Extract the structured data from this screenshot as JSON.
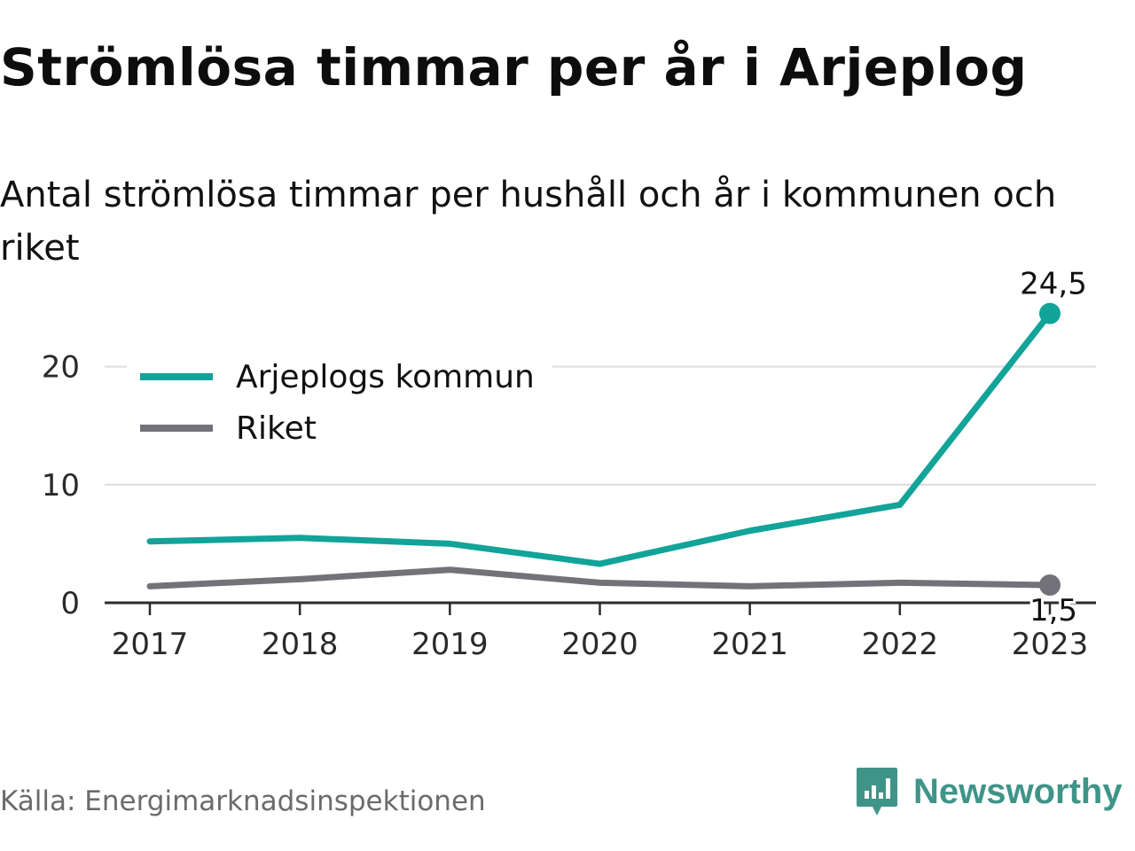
{
  "title": "Strömlösa timmar per år i Arjeplog",
  "subtitle": "Antal strömlösa timmar per hushåll och år i kommunen och riket",
  "source": "Källa: Energimarknadsinspektionen",
  "brand": {
    "name": "Newsworthy",
    "icon": "newsworthy-logo-icon",
    "color": "#3f9488"
  },
  "chart_data": {
    "type": "line",
    "x": [
      "2017",
      "2018",
      "2019",
      "2020",
      "2021",
      "2022",
      "2023"
    ],
    "ylim": [
      0,
      25
    ],
    "yticks": [
      "0",
      "10",
      "20"
    ],
    "grid": true,
    "legend_position": "top-left",
    "series": [
      {
        "name": "Arjeplogs kommun",
        "color": "#12a399",
        "values": [
          5.2,
          5.5,
          5.0,
          3.3,
          6.1,
          8.3,
          24.5
        ],
        "end_label": "24,5"
      },
      {
        "name": "Riket",
        "color": "#737278",
        "values": [
          1.4,
          2.0,
          2.8,
          1.7,
          1.4,
          1.7,
          1.5
        ],
        "end_label": "1,5"
      }
    ]
  }
}
